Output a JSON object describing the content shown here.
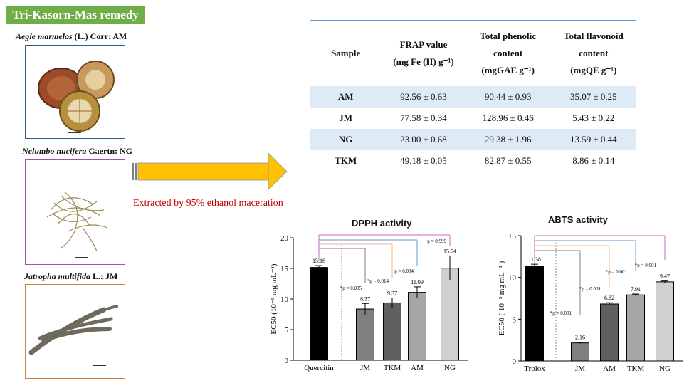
{
  "header": {
    "title": "Tri-Kasorn-Mas remedy"
  },
  "plants": [
    {
      "name": "Aegle marmelos",
      "suffix": " (L.) Corr: AM",
      "border": "#2e5d8a"
    },
    {
      "name": "Nelumbo nucifera",
      "suffix": " Gaertn: NG",
      "border": "#b347b3"
    },
    {
      "name": "Jatropha multifida",
      "suffix": " L.: JM",
      "border": "#c8853a"
    }
  ],
  "arrow": {
    "color": "#ffc000",
    "label": "Extracted by 95% ethanol maceration"
  },
  "table": {
    "headers": [
      [
        "Sample"
      ],
      [
        "FRAP value",
        "(mg Fe (II) g⁻¹)"
      ],
      [
        "Total phenolic",
        "content",
        "(mgGAE g⁻¹)"
      ],
      [
        "Total flavonoid",
        "content",
        "(mgQE g⁻¹)"
      ]
    ],
    "rows": [
      [
        "AM",
        "92.56 ± 0.63",
        "90.44 ± 0.93",
        "35.07 ± 0.25"
      ],
      [
        "JM",
        "77.58 ± 0.34",
        "128.96 ± 0.46",
        "5.43 ± 0.22"
      ],
      [
        "NG",
        "23.00 ± 0.68",
        "29.38 ± 1.96",
        "13.59 ± 0.44"
      ],
      [
        "TKM",
        "49.18 ± 0.05",
        "82.87 ± 0.55",
        "8.86 ± 0.14"
      ]
    ]
  },
  "chart_data": [
    {
      "type": "bar",
      "title": "DPPH activity",
      "ylabel": "EC50 (10⁻³ mg mL⁻¹)",
      "ylim": [
        0,
        20
      ],
      "yticks": [
        0,
        5,
        10,
        15,
        20
      ],
      "categories": [
        "Quercitin",
        "JM",
        "TKM",
        "AM",
        "NG"
      ],
      "values": [
        15.16,
        8.37,
        9.37,
        11.09,
        15.04
      ],
      "errors": [
        0.3,
        0.9,
        0.8,
        0.9,
        2.0
      ],
      "value_labels": [
        "15.16",
        "8.37",
        "9.37",
        "11.09",
        "15.04"
      ],
      "colors": [
        "#000000",
        "#7f7f7f",
        "#5f5f5f",
        "#a6a6a6",
        "#d0d0d0"
      ],
      "annotations": [
        "*p = 0.005",
        "*p = 0.014",
        "p = 0.084",
        "p = 0.999"
      ],
      "bracket_colors": [
        "#7f7f7f",
        "#f4b183",
        "#5b9bd5",
        "#cc66cc"
      ]
    },
    {
      "type": "bar",
      "title": "ABTS activity",
      "ylabel": "EC50 ( 10⁻³ mg mL⁻¹ )",
      "ylim": [
        0,
        15
      ],
      "yticks": [
        0,
        5,
        10,
        15
      ],
      "categories": [
        "Trolox",
        "JM",
        "AM",
        "TKM",
        "NG"
      ],
      "values": [
        11.38,
        2.16,
        6.82,
        7.91,
        9.47
      ],
      "errors": [
        0.2,
        0.08,
        0.15,
        0.1,
        0.1
      ],
      "value_labels": [
        "11.38",
        "2.16",
        "6.82",
        "7.91",
        "9.47"
      ],
      "colors": [
        "#000000",
        "#7f7f7f",
        "#5f5f5f",
        "#a6a6a6",
        "#d0d0d0"
      ],
      "annotations": [
        "*p = 0.001",
        "*p = 0.001",
        "*p = 0.001",
        "*p = 0.001"
      ],
      "bracket_colors": [
        "#7f7f7f",
        "#f4b183",
        "#5b9bd5",
        "#cc66cc"
      ]
    }
  ]
}
